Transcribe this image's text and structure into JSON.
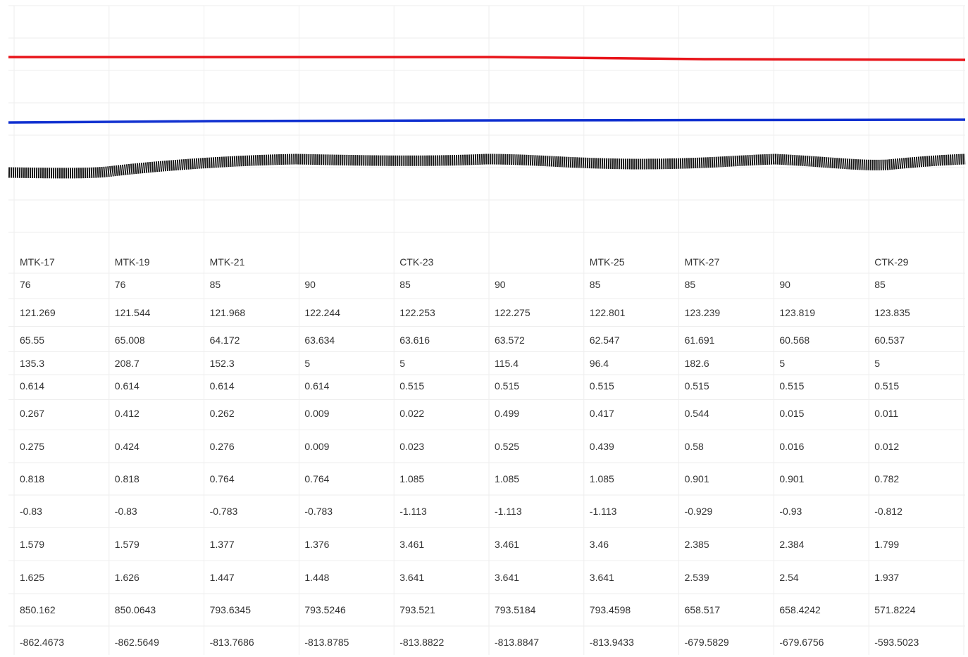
{
  "table": {
    "rows": [
      [
        "MTK-17",
        "MTK-19",
        "MTK-21",
        null,
        "CTK-23",
        null,
        "MTK-25",
        "MTK-27",
        null,
        "CTK-29"
      ],
      [
        "76",
        "76",
        "85",
        "90",
        "85",
        "90",
        "85",
        "85",
        "90",
        "85"
      ],
      [
        "121.269",
        "121.544",
        "121.968",
        "122.244",
        "122.253",
        "122.275",
        "122.801",
        "123.239",
        "123.819",
        "123.835"
      ],
      [
        "65.55",
        "65.008",
        "64.172",
        "63.634",
        "63.616",
        "63.572",
        "62.547",
        "61.691",
        "60.568",
        "60.537"
      ],
      [
        "135.3",
        "208.7",
        "152.3",
        "5",
        "5",
        "115.4",
        "96.4",
        "182.6",
        "5",
        "5"
      ],
      [
        "0.614",
        "0.614",
        "0.614",
        "0.614",
        "0.515",
        "0.515",
        "0.515",
        "0.515",
        "0.515",
        "0.515"
      ],
      [
        "0.267",
        "0.412",
        "0.262",
        "0.009",
        "0.022",
        "0.499",
        "0.417",
        "0.544",
        "0.015",
        "0.011"
      ],
      [
        "0.275",
        "0.424",
        "0.276",
        "0.009",
        "0.023",
        "0.525",
        "0.439",
        "0.58",
        "0.016",
        "0.012"
      ],
      [
        "0.818",
        "0.818",
        "0.764",
        "0.764",
        "1.085",
        "1.085",
        "1.085",
        "0.901",
        "0.901",
        "0.782"
      ],
      [
        "-0.83",
        "-0.83",
        "-0.783",
        "-0.783",
        "-1.113",
        "-1.113",
        "-1.113",
        "-0.929",
        "-0.93",
        "-0.812"
      ],
      [
        "1.579",
        "1.579",
        "1.377",
        "1.376",
        "3.461",
        "3.461",
        "3.46",
        "2.385",
        "2.384",
        "1.799"
      ],
      [
        "1.625",
        "1.626",
        "1.447",
        "1.448",
        "3.641",
        "3.641",
        "3.641",
        "2.539",
        "2.54",
        "1.937"
      ],
      [
        "850.162",
        "850.0643",
        "793.6345",
        "793.5246",
        "793.521",
        "793.5184",
        "793.4598",
        "658.517",
        "658.4242",
        "571.8224"
      ],
      [
        "-862.4673",
        "-862.5649",
        "-813.7686",
        "-813.8785",
        "-813.8822",
        "-813.8847",
        "-813.9433",
        "-679.5829",
        "-679.6756",
        "-593.5023"
      ]
    ]
  }
}
